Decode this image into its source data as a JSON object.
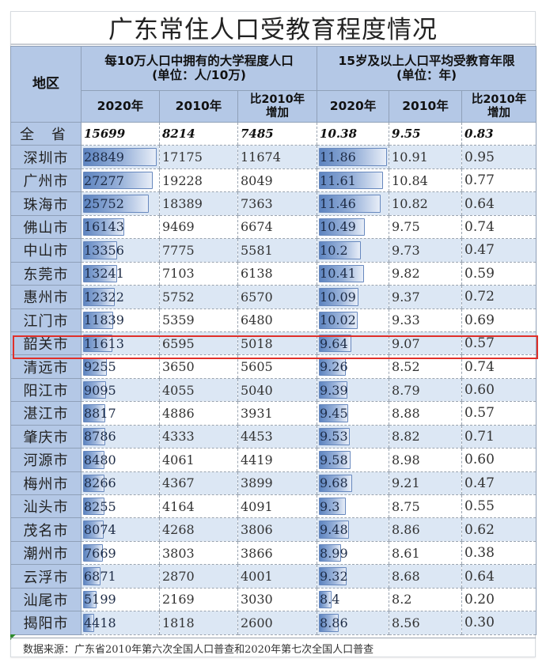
{
  "title": "广东常住人口受教育程度情况",
  "header": {
    "region": "地区",
    "group_a": "每10万人口中拥有的大学程度人口 (单位：人/10万)",
    "group_a_line1": "每10万人口中拥有的大学程度人口",
    "group_a_line2": "(单位：人/10万)",
    "group_b_line1": "15岁及以上人口平均受教育年限",
    "group_b_line2": "(单位：年)",
    "col_2020": "2020年",
    "col_2010": "2010年",
    "col_inc_line1": "比2010年",
    "col_inc_line2": "增加"
  },
  "rows": [
    {
      "region": "全 省",
      "a2020": "15699",
      "a2010": "8214",
      "ainc": "7485",
      "b2020": "10.38",
      "b2010": "9.55",
      "binc": "0.83"
    },
    {
      "region": "深圳市",
      "a2020": "28849",
      "a2010": "17175",
      "ainc": "11674",
      "b2020": "11.86",
      "b2010": "10.91",
      "binc": "0.95"
    },
    {
      "region": "广州市",
      "a2020": "27277",
      "a2010": "19228",
      "ainc": "8049",
      "b2020": "11.61",
      "b2010": "10.84",
      "binc": "0.77"
    },
    {
      "region": "珠海市",
      "a2020": "25752",
      "a2010": "18389",
      "ainc": "7363",
      "b2020": "11.46",
      "b2010": "10.82",
      "binc": "0.64"
    },
    {
      "region": "佛山市",
      "a2020": "16143",
      "a2010": "9469",
      "ainc": "6674",
      "b2020": "10.49",
      "b2010": "9.75",
      "binc": "0.74"
    },
    {
      "region": "中山市",
      "a2020": "13356",
      "a2010": "7775",
      "ainc": "5581",
      "b2020": "10.2",
      "b2010": "9.73",
      "binc": "0.47"
    },
    {
      "region": "东莞市",
      "a2020": "13241",
      "a2010": "7103",
      "ainc": "6138",
      "b2020": "10.41",
      "b2010": "9.82",
      "binc": "0.59"
    },
    {
      "region": "惠州市",
      "a2020": "12322",
      "a2010": "5752",
      "ainc": "6570",
      "b2020": "10.09",
      "b2010": "9.37",
      "binc": "0.72"
    },
    {
      "region": "江门市",
      "a2020": "11839",
      "a2010": "5359",
      "ainc": "6480",
      "b2020": "10.02",
      "b2010": "9.33",
      "binc": "0.69"
    },
    {
      "region": "韶关市",
      "a2020": "11613",
      "a2010": "6595",
      "ainc": "5018",
      "b2020": "9.64",
      "b2010": "9.07",
      "binc": "0.57"
    },
    {
      "region": "清远市",
      "a2020": "9255",
      "a2010": "3650",
      "ainc": "5605",
      "b2020": "9.26",
      "b2010": "8.52",
      "binc": "0.74"
    },
    {
      "region": "阳江市",
      "a2020": "9095",
      "a2010": "4055",
      "ainc": "5040",
      "b2020": "9.39",
      "b2010": "8.79",
      "binc": "0.60"
    },
    {
      "region": "湛江市",
      "a2020": "8817",
      "a2010": "4886",
      "ainc": "3931",
      "b2020": "9.45",
      "b2010": "8.88",
      "binc": "0.57"
    },
    {
      "region": "肇庆市",
      "a2020": "8786",
      "a2010": "4333",
      "ainc": "4453",
      "b2020": "9.53",
      "b2010": "8.82",
      "binc": "0.71"
    },
    {
      "region": "河源市",
      "a2020": "8480",
      "a2010": "4061",
      "ainc": "4419",
      "b2020": "9.58",
      "b2010": "8.98",
      "binc": "0.60"
    },
    {
      "region": "梅州市",
      "a2020": "8266",
      "a2010": "4367",
      "ainc": "3899",
      "b2020": "9.68",
      "b2010": "9.21",
      "binc": "0.47"
    },
    {
      "region": "汕头市",
      "a2020": "8255",
      "a2010": "4164",
      "ainc": "4091",
      "b2020": "9.3",
      "b2010": "8.75",
      "binc": "0.55"
    },
    {
      "region": "茂名市",
      "a2020": "8074",
      "a2010": "4268",
      "ainc": "3806",
      "b2020": "9.48",
      "b2010": "8.86",
      "binc": "0.62"
    },
    {
      "region": "潮州市",
      "a2020": "7669",
      "a2010": "3803",
      "ainc": "3866",
      "b2020": "8.99",
      "b2010": "8.61",
      "binc": "0.38"
    },
    {
      "region": "云浮市",
      "a2020": "6871",
      "a2010": "2870",
      "ainc": "4001",
      "b2020": "9.32",
      "b2010": "8.68",
      "binc": "0.64"
    },
    {
      "region": "汕尾市",
      "a2020": "5199",
      "a2010": "2169",
      "ainc": "3030",
      "b2020": "8.4",
      "b2010": "8.2",
      "binc": "0.20"
    },
    {
      "region": "揭阳市",
      "a2020": "4418",
      "a2010": "1818",
      "ainc": "2600",
      "b2020": "8.86",
      "b2010": "8.56",
      "binc": "0.30"
    }
  ],
  "highlighted_region": "韶关市",
  "highlight_color": "#e0302a",
  "header_color": "#b4c8e6",
  "stripe_color": "#dce7f4",
  "bar_color": "#5d84c0",
  "footer": "数据来源：广东省2010年第六次全国人口普查和2020年第七次全国人口普查"
}
